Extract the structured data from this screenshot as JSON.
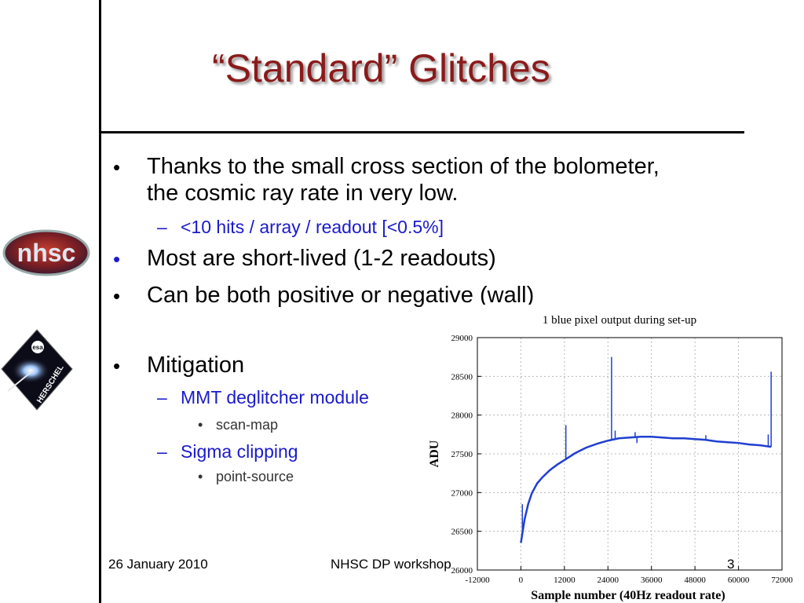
{
  "slide": {
    "title": "“Standard” Glitches",
    "bullets": [
      {
        "marker": "•",
        "line1": "Thanks to the small cross section of the bolometer,",
        "line2": "the cosmic ray rate in very low."
      },
      {
        "marker": "–",
        "text": "<10 hits / array / readout [<0.5%]"
      },
      {
        "marker": "•",
        "text": "Most are short-lived (1-2 readouts)"
      },
      {
        "marker": "•",
        "text": "Can be both positive or negative (wall)"
      },
      {
        "marker": "•",
        "text": "Mitigation"
      },
      {
        "marker": "–",
        "text": "MMT deglitcher module"
      },
      {
        "marker": "•",
        "text": "scan-map"
      },
      {
        "marker": "–",
        "text": "Sigma clipping"
      },
      {
        "marker": "•",
        "text": "point-source"
      }
    ],
    "footer": {
      "date": "26 January 2010",
      "event": "NHSC DP workshop",
      "page": "3"
    },
    "logos": {
      "nhsc": "nhsc",
      "herschel": "HERSCHEL",
      "esa": "esa"
    },
    "colors": {
      "title": "#8b1a1a",
      "sub": "#1a1acc",
      "series": "#1f3fd0"
    }
  },
  "chart_data": {
    "type": "line",
    "title": "1 blue pixel output during set-up",
    "xlabel": "Sample number (40Hz readout rate)",
    "ylabel": "ADU",
    "xlim": [
      -12000,
      72000
    ],
    "ylim": [
      26000,
      29000
    ],
    "xticks": [
      -12000,
      0,
      12000,
      24000,
      36000,
      48000,
      60000,
      72000
    ],
    "yticks": [
      26000,
      26500,
      27000,
      27500,
      28000,
      28500,
      29000
    ],
    "grid": true,
    "series": [
      {
        "x": [
          0,
          1000,
          2000,
          3000,
          4500,
          6000,
          8000,
          10000,
          12000,
          15000,
          18000,
          21000,
          24000,
          27000,
          30000,
          33000,
          36000,
          39000,
          42000,
          45000,
          48000,
          51000,
          54000,
          57000,
          60000,
          63000,
          66000,
          69000
        ],
        "y": [
          26350,
          26650,
          26850,
          26990,
          27120,
          27200,
          27290,
          27360,
          27420,
          27510,
          27580,
          27630,
          27670,
          27700,
          27710,
          27720,
          27720,
          27710,
          27700,
          27700,
          27690,
          27680,
          27660,
          27650,
          27640,
          27620,
          27610,
          27590
        ]
      }
    ],
    "spikes": [
      {
        "x": 400,
        "from": 26450,
        "to": 26850
      },
      {
        "x": 12400,
        "from": 27420,
        "to": 27870
      },
      {
        "x": 25000,
        "from": 27680,
        "to": 28750
      },
      {
        "x": 26000,
        "from": 27680,
        "to": 27800
      },
      {
        "x": 31500,
        "from": 27710,
        "to": 27780
      },
      {
        "x": 32000,
        "from": 27640,
        "to": 27720
      },
      {
        "x": 51000,
        "from": 27680,
        "to": 27740
      },
      {
        "x": 68200,
        "from": 27590,
        "to": 27750
      },
      {
        "x": 69000,
        "from": 27590,
        "to": 28560
      }
    ]
  }
}
